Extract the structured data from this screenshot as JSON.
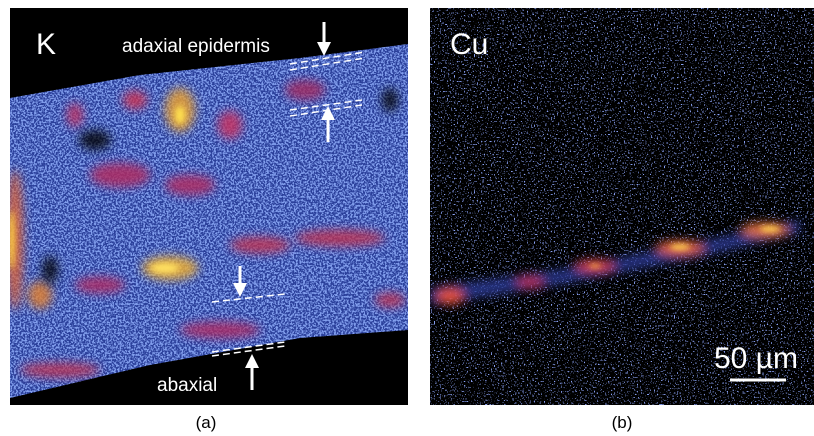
{
  "panels": [
    {
      "label": "K",
      "annotations": [
        "adaxial epidermis",
        "abaxial"
      ],
      "caption": "(a)"
    },
    {
      "label": "Cu",
      "scale_bar": "50 µm",
      "caption": "(b)"
    }
  ]
}
